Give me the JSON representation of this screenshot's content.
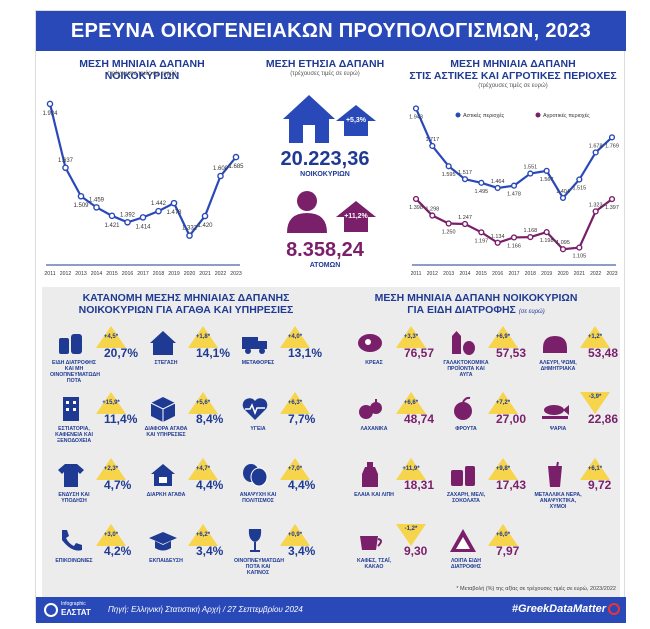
{
  "title": "ΕΡΕΥΝΑ ΟΙΚΟΓΕΝΕΙΑΚΩΝ ΠΡΟΥΠΟΛΟΓΙΣΜΩΝ, 2023",
  "colors": {
    "blue": "#1f3a93",
    "purple": "#7a1f6a",
    "yellow": "#f6d44b",
    "header": "#2a49b8"
  },
  "chart_data": [
    {
      "type": "line",
      "title": "ΜΕΣΗ ΜΗΝΙΑΙΑ ΔΑΠΑΝΗ ΝΟΙΚΟΚΥΡΙΩΝ",
      "x": [
        "2011",
        "2012",
        "2013",
        "2014",
        "2015",
        "2016",
        "2017",
        "2018",
        "2019",
        "2020",
        "2021",
        "2022",
        "2023"
      ],
      "values": [
        1924,
        1637,
        1509,
        1459,
        1421,
        1392,
        1414,
        1442,
        1478,
        1332,
        1420,
        1600,
        1685
      ],
      "labels": [
        "1.924",
        "1.637",
        "1.509",
        "1.459",
        "1.421",
        "1.392",
        "1.414",
        "1.442",
        "1.478",
        "1.332",
        "1.420",
        "1.600",
        "1.685"
      ],
      "ylim": [
        1200,
        2000
      ]
    },
    {
      "type": "line",
      "title": "ΜΕΣΗ ΜΗΝΙΑΙΑ ΔΑΠΑΝΗ ΣΤΙΣ ΑΣΤΙΚΕΣ ΚΑΙ ΑΓΡΟΤΙΚΕΣ ΠΕΡΙΟΧΕΣ",
      "subtitle": "(τρέχουσες τιμές σε ευρώ)",
      "x": [
        "2011",
        "2012",
        "2013",
        "2014",
        "2015",
        "2016",
        "2017",
        "2018",
        "2019",
        "2020",
        "2021",
        "2022",
        "2023"
      ],
      "ylim": [
        1000,
        2000
      ],
      "series": [
        {
          "name": "Αστικές περιοχές",
          "values": [
            1943,
            1717,
            1595,
            1517,
            1495,
            1464,
            1478,
            1551,
            1567,
            1404,
            1515,
            1678,
            1769
          ],
          "labels": [
            "1.943",
            "1.717",
            "1.595",
            "1.517",
            "1.495",
            "1.464",
            "1.478",
            "1.551",
            "1.567",
            "1.404",
            "1.515",
            "1.678",
            "1.769"
          ]
        },
        {
          "name": "Αγροτικές περιοχές",
          "values": [
            1398,
            1298,
            1250,
            1247,
            1197,
            1134,
            1166,
            1168,
            1198,
            1095,
            1105,
            1323,
            1397
          ],
          "labels": [
            "1.398",
            "1.298",
            "1.250",
            "1.247",
            "1.197",
            "1.134",
            "1.166",
            "1.168",
            "1.198",
            "1.095",
            "1.105",
            "1.323",
            "1.397"
          ]
        }
      ]
    }
  ],
  "left_chart": {
    "title": "ΜΕΣΗ ΜΗΝΙΑΙΑ ΔΑΠΑΝΗ ΝΟΙΚΟΚΥΡΙΩΝ",
    "subtitle": "(τρέχουσες τιμές σε ευρώ)"
  },
  "annual": {
    "title": "ΜΕΣΗ ΕΤΗΣΙΑ ΔΑΠΑΝΗ",
    "subtitle": "(τρέχουσες τιμές σε ευρώ)",
    "household_value": "20.223,36",
    "household_label": "ΝΟΙΚΟΚΥΡΙΩΝ",
    "household_change": "+5,3%",
    "person_value": "8.358,24",
    "person_label": "ΑΤΟΜΩΝ",
    "person_change": "+11,2%"
  },
  "right_chart": {
    "title1": "ΜΕΣΗ ΜΗΝΙΑΙΑ ΔΑΠΑΝΗ",
    "title2": "ΣΤΙΣ ΑΣΤΙΚΕΣ ΚΑΙ ΑΓΡΟΤΙΚΕΣ ΠΕΡΙΟΧΕΣ",
    "subtitle": "(τρέχουσες τιμές σε ευρώ)"
  },
  "goods": {
    "title1": "ΚΑΤΑΝΟΜΗ ΜΕΣΗΣ ΜΗΝΙΑΙΑΣ ΔΑΠΑΝΗΣ",
    "title2": "ΝΟΙΚΟΚΥΡΙΩΝ ΓΙΑ ΑΓΑΘΑ ΚΑΙ ΥΠΗΡΕΣΙΕΣ",
    "items": [
      {
        "label": "ΕΙΔΗ ΔΙΑΤΡΟΦΗΣ ΚΑΙ ΜΗ ΟΙΝΟΠΝΕΥΜΑΤΩΔΗ ΠΟΤΑ",
        "change": "+4,5*",
        "value": "20,7%",
        "icon": "food-icon"
      },
      {
        "label": "ΣΤΕΓΑΣΗ",
        "change": "+1,8*",
        "value": "14,1%",
        "icon": "house-icon"
      },
      {
        "label": "ΜΕΤΑΦΟΡΕΣ",
        "change": "+4,0*",
        "value": "13,1%",
        "icon": "truck-icon"
      },
      {
        "label": "ΕΣΤΙΑΤΟΡΙΑ, ΚΑΦΕΝΕΙΑ ΚΑΙ ΞΕΝΟΔΟΧΕΙΑ",
        "change": "+15,9*",
        "value": "11,4%",
        "icon": "hotel-icon"
      },
      {
        "label": "ΔΙΑΦΟΡΑ ΑΓΑΘΑ ΚΑΙ ΥΠΗΡΕΣΙΕΣ",
        "change": "+5,6*",
        "value": "8,4%",
        "icon": "box-icon"
      },
      {
        "label": "ΥΓΕΙΑ",
        "change": "+6,3*",
        "value": "7,7%",
        "icon": "health-icon"
      },
      {
        "label": "ΕΝΔΥΣΗ ΚΑΙ ΥΠΟΔΗΣΗ",
        "change": "+2,3*",
        "value": "4,7%",
        "icon": "clothing-icon"
      },
      {
        "label": "ΔΙΑΡΚΗ ΑΓΑΘΑ",
        "change": "+4,7*",
        "value": "4,4%",
        "icon": "durable-goods-icon"
      },
      {
        "label": "ΑΝΑΨΥΧΗ ΚΑΙ ΠΟΛΙΤΙΣΜΟΣ",
        "change": "+7,0*",
        "value": "4,4%",
        "icon": "theater-masks-icon"
      },
      {
        "label": "ΕΠΙΚΟΙΝΩΝΙΕΣ",
        "change": "+3,0*",
        "value": "4,2%",
        "icon": "phone-icon"
      },
      {
        "label": "ΕΚΠΑΙΔΕΥΣΗ",
        "change": "+6,2*",
        "value": "3,4%",
        "icon": "graduation-cap-icon"
      },
      {
        "label": "ΟΙΝΟΠΝΕΥΜΑΤΩΔΗ ΠΟΤΑ ΚΑΙ ΚΑΠΝΟΣ",
        "change": "+0,9*",
        "value": "3,4%",
        "icon": "wine-icon"
      }
    ]
  },
  "food": {
    "title1": "ΜΕΣΗ ΜΗΝΙΑΙΑ ΔΑΠΑΝΗ ΝΟΙΚΟΚΥΡΙΩΝ",
    "title2": "ΓΙΑ ΕΙΔΗ ΔΙΑΤΡΟΦΗΣ",
    "subtitle": "(σε ευρώ)",
    "items": [
      {
        "label": "ΚΡΕΑΣ",
        "change": "+3,3*",
        "value": "76,57",
        "icon": "meat-icon"
      },
      {
        "label": "ΓΑΛΑΚΤΟΚΟΜΙΚΑ ΠΡΟΪΟΝΤΑ ΚΑΙ ΑΥΓΑ",
        "change": "+6,9*",
        "value": "57,53",
        "icon": "dairy-icon"
      },
      {
        "label": "ΑΛΕΥΡΙ, ΨΩΜΙ, ΔΗΜΗΤΡΙΑΚΑ",
        "change": "+1,2*",
        "value": "53,48",
        "icon": "bread-icon"
      },
      {
        "label": "ΛΑΧΑΝΙΚΑ",
        "change": "+6,6*",
        "value": "48,74",
        "icon": "vegetables-icon"
      },
      {
        "label": "ΦΡΟΥΤΑ",
        "change": "+7,2*",
        "value": "27,00",
        "icon": "fruit-icon"
      },
      {
        "label": "ΨΑΡΙΑ",
        "change": "-3,9*",
        "value": "22,86",
        "icon": "fish-icon"
      },
      {
        "label": "ΕΛΑΙΑ ΚΑΙ ΛΙΠΗ",
        "change": "+11,9*",
        "value": "18,31",
        "icon": "oil-icon"
      },
      {
        "label": "ΖΑΧΑΡΗ, ΜΕΛΙ, ΣΟΚΟΛΑΤΑ",
        "change": "+9,8*",
        "value": "17,43",
        "icon": "sugar-icon"
      },
      {
        "label": "ΜΕΤΑΛΛΙΚΑ ΝΕΡΑ, ΑΝΑΨΥΚΤΙΚΑ, ΧΥΜΟΙ",
        "change": "+6,1*",
        "value": "9,72",
        "icon": "drink-icon"
      },
      {
        "label": "ΚΑΦΕΣ, ΤΣΑΪ, ΚΑΚΑΟ",
        "change": "-1,2*",
        "value": "9,30",
        "icon": "coffee-icon"
      },
      {
        "label": "ΛΟΙΠΑ ΕΙΔΗ ΔΙΑΤΡΟΦΗΣ",
        "change": "+6,0*",
        "value": "7,97",
        "icon": "other-food-icon"
      }
    ]
  },
  "footnote": "* Μεταβολή (%) της αξίας σε τρέχουσες τιμές σε ευρώ, 2023/2022",
  "footer": {
    "logo_top": "Infographic",
    "logo_bottom": "ΕΛΣΤΑΤ",
    "source": "Πηγή: Ελληνική Στατιστική Αρχή  /  27 Σεπτεμβρίου 2024",
    "hashtag": "#GreekDataMatter"
  }
}
